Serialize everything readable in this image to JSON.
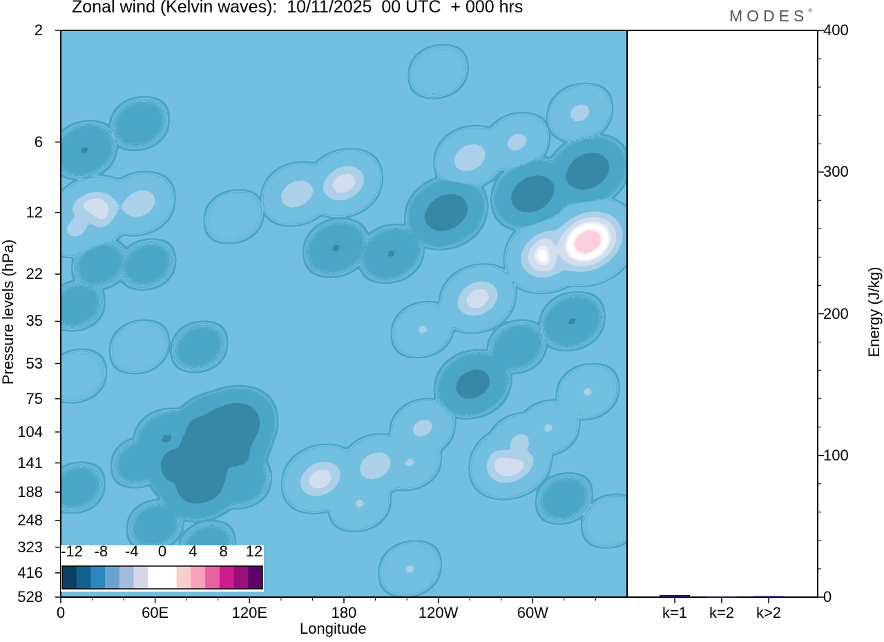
{
  "header": {
    "title": "Zonal wind (Kelvin waves):  10/11/2025  00 UTC  + 000 hrs",
    "brand": "MODES"
  },
  "colors": {
    "neg": [
      "#0b3f5f",
      "#11628f",
      "#2d86bd",
      "#6aa2cf",
      "#a4bcdc",
      "#d3d8e9"
    ],
    "zero": "#ffffff",
    "pos": [
      "#f8cfcb",
      "#f7a0b9",
      "#ea5fa6",
      "#cc1d8d",
      "#9a0f7a",
      "#5a0468"
    ],
    "bar": "#1a1a6e"
  },
  "chart_data": [
    {
      "type": "heatmap",
      "title": "Zonal wind (Kelvin waves):  10/11/2025  00 UTC  + 000 hrs",
      "xlabel": "Longitude",
      "ylabel": "Pressure levels (hPa)",
      "x_ticks": [
        "0",
        "60E",
        "120E",
        "180",
        "120W",
        "60W"
      ],
      "y_ticks": [
        "2",
        "6",
        "12",
        "22",
        "35",
        "53",
        "75",
        "104",
        "141",
        "188",
        "248",
        "323",
        "416",
        "528"
      ],
      "y_scale": "log",
      "colorbar": {
        "labels": [
          "-12",
          "-8",
          "-4",
          "0",
          "4",
          "8",
          "12"
        ],
        "levels": [
          -12,
          -10,
          -8,
          -6,
          -4,
          -2,
          2,
          4,
          6,
          8,
          10,
          12
        ]
      },
      "features": [
        {
          "lon": 93,
          "p": 130,
          "value": -13
        },
        {
          "lon": 100,
          "p": 112,
          "value": -11
        },
        {
          "lon": 90,
          "p": 170,
          "value": -7
        },
        {
          "lon": 108,
          "p": 100,
          "value": -8
        },
        {
          "lon": 67,
          "p": 110,
          "value": -3
        },
        {
          "lon": 115,
          "p": 170,
          "value": -2
        },
        {
          "lon": 60,
          "p": 260,
          "value": -1.5
        },
        {
          "lon": 93,
          "p": 320,
          "value": -1.5
        },
        {
          "lon": 165,
          "p": 165,
          "value": 5
        },
        {
          "lon": 200,
          "p": 145,
          "value": 4
        },
        {
          "lon": 190,
          "p": 210,
          "value": 2.5
        },
        {
          "lon": 222,
          "p": 400,
          "value": 2.5
        },
        {
          "lon": 230,
          "p": 100,
          "value": 3
        },
        {
          "lon": 222,
          "p": 140,
          "value": 2.5
        },
        {
          "lon": 286,
          "p": 140,
          "value": 6
        },
        {
          "lon": 292,
          "p": 115,
          "value": 3
        },
        {
          "lon": 310,
          "p": 100,
          "value": 2.5
        },
        {
          "lon": 262,
          "p": 65,
          "value": -5
        },
        {
          "lon": 290,
          "p": 45,
          "value": -2
        },
        {
          "lon": 325,
          "p": 35,
          "value": -3
        },
        {
          "lon": 230,
          "p": 38,
          "value": 2.5
        },
        {
          "lon": 265,
          "p": 28,
          "value": 5
        },
        {
          "lon": 310,
          "p": 18,
          "value": 7
        },
        {
          "lon": 335,
          "p": 16,
          "value": 9
        },
        {
          "lon": 245,
          "p": 12,
          "value": -6
        },
        {
          "lon": 300,
          "p": 10,
          "value": -6
        },
        {
          "lon": 335,
          "p": 8,
          "value": -6
        },
        {
          "lon": 175,
          "p": 17,
          "value": -3
        },
        {
          "lon": 210,
          "p": 18,
          "value": -3
        },
        {
          "lon": 150,
          "p": 10,
          "value": 4
        },
        {
          "lon": 180,
          "p": 9,
          "value": 5
        },
        {
          "lon": 110,
          "p": 12.5,
          "value": 2
        },
        {
          "lon": 20,
          "p": 12,
          "value": 6
        },
        {
          "lon": 50,
          "p": 11,
          "value": 4
        },
        {
          "lon": 10,
          "p": 14,
          "value": 3
        },
        {
          "lon": 15,
          "p": 6.5,
          "value": -3
        },
        {
          "lon": 50,
          "p": 5,
          "value": -2
        },
        {
          "lon": 25,
          "p": 20,
          "value": -1.5
        },
        {
          "lon": 55,
          "p": 20,
          "value": -1.5
        },
        {
          "lon": 260,
          "p": 7,
          "value": 4
        },
        {
          "lon": 290,
          "p": 6,
          "value": 3
        },
        {
          "lon": 330,
          "p": 4.5,
          "value": 3
        },
        {
          "lon": 240,
          "p": 3,
          "value": 2
        },
        {
          "lon": 10,
          "p": 60,
          "value": 2
        },
        {
          "lon": 50,
          "p": 45,
          "value": 2
        },
        {
          "lon": 10,
          "p": 30,
          "value": -1.5
        },
        {
          "lon": 88,
          "p": 45,
          "value": -1.5
        },
        {
          "lon": 50,
          "p": 140,
          "value": -1.5
        },
        {
          "lon": 10,
          "p": 180,
          "value": -1.5
        },
        {
          "lon": 320,
          "p": 200,
          "value": -1.5
        },
        {
          "lon": 335,
          "p": 70,
          "value": 2.5
        },
        {
          "lon": 350,
          "p": 250,
          "value": 2
        }
      ]
    },
    {
      "type": "bar",
      "ylabel": "Energy (J/kg)",
      "categories": [
        "k=1",
        "k=2",
        "k>2"
      ],
      "values": [
        1.5,
        0.3,
        0.8
      ],
      "ylim": [
        0,
        400
      ],
      "yticks": [
        "0",
        "100",
        "200",
        "300",
        "400"
      ]
    }
  ]
}
